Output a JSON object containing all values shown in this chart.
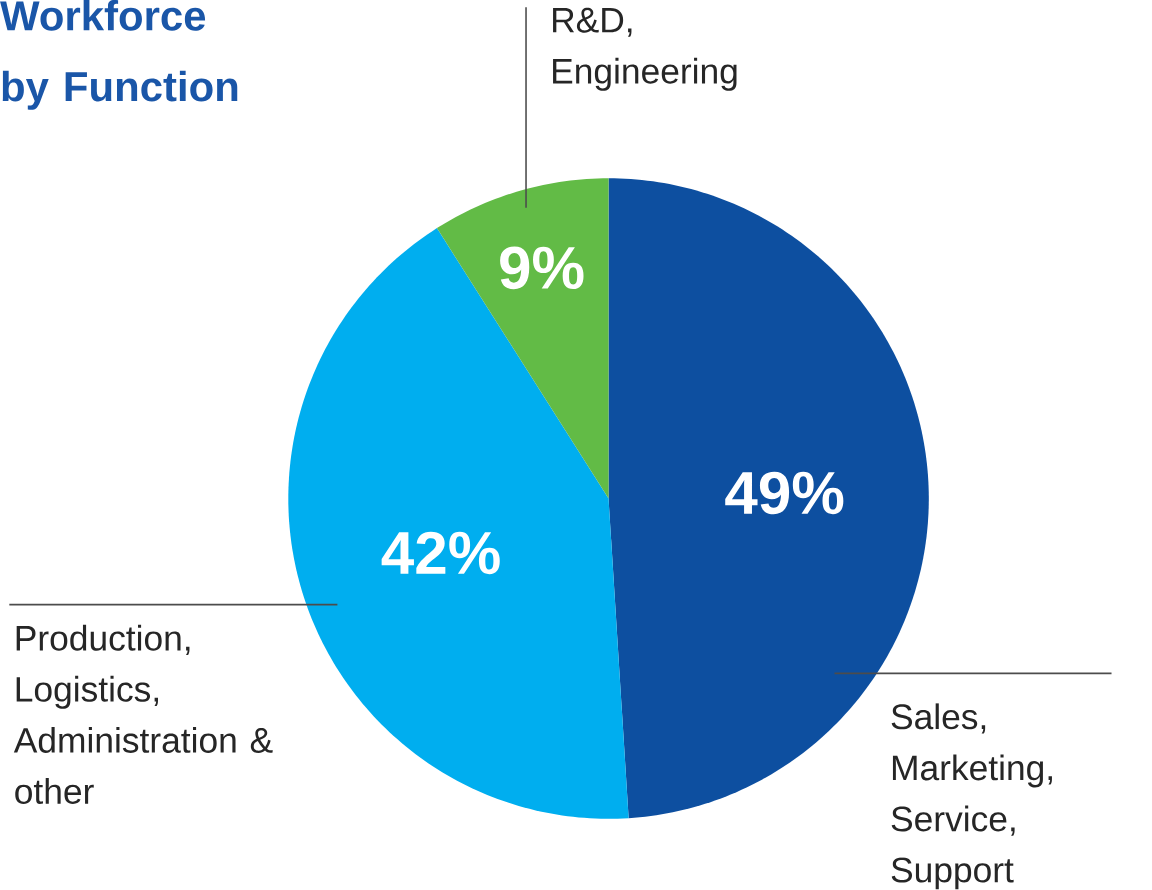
{
  "chart_data": {
    "type": "pie",
    "title": "Workforce by Function",
    "categories": [
      "Sales, Marketing, Service, Support",
      "Production, Logistics, Administration & other",
      "R&D, Engineering"
    ],
    "values": [
      49,
      42,
      9
    ],
    "value_labels": [
      "49%",
      "42%",
      "9%"
    ],
    "colors": [
      "#0d4fa0",
      "#00aeef",
      "#62bb46"
    ]
  }
}
